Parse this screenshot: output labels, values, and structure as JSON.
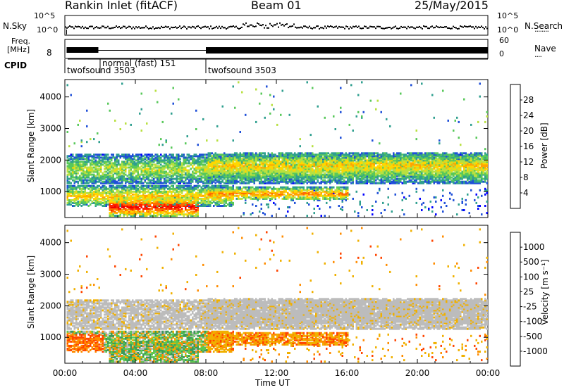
{
  "header": {
    "station": "Rankin Inlet (fitACF)",
    "beam": "Beam 01",
    "date": "25/May/2015"
  },
  "strip_labels": {
    "nsky": "N.Sky",
    "nsky_ticks": [
      "10^5",
      "10^0"
    ],
    "nsearch": "N.Search",
    "nsearch_ticks": [
      "10^5",
      "10^0"
    ],
    "freq_line1": "Freq.",
    "freq_line2": "[MHz]",
    "freq_ticks": [
      "8"
    ],
    "nave": "Nave",
    "nave_ticks": [
      "60",
      "0"
    ],
    "cpid": "CPID",
    "cpid_segments": [
      {
        "start_hour": 0.0,
        "label": "twofsound 3503"
      },
      {
        "start_hour": 2.0,
        "label": "normal (fast)  151"
      },
      {
        "start_hour": 8.0,
        "label": "twofsound 3503"
      }
    ]
  },
  "x_axis": {
    "label": "Time UT",
    "ticks": [
      "00:00",
      "04:00",
      "08:00",
      "12:00",
      "16:00",
      "20:00",
      "00:00"
    ],
    "range_hours": [
      0,
      24
    ]
  },
  "chart_data": [
    {
      "type": "heatmap",
      "panel": "power",
      "xlabel": "Time UT",
      "ylabel": "Slant Range [km]",
      "xlim_hours": [
        0,
        24
      ],
      "ylim_km": [
        180,
        4550
      ],
      "y_ticks": [
        "1000",
        "2000",
        "3000",
        "4000"
      ],
      "colorbar": {
        "label": "Power [dB]",
        "ticks": [
          "28",
          "24",
          "20",
          "16",
          "12",
          "8",
          "4"
        ],
        "colors": [
          "#0000ff",
          "#1f4fd8",
          "#2f9f8f",
          "#58c85a",
          "#b8e040",
          "#ffd700",
          "#ffa500",
          "#ff6a00",
          "#ff2000",
          "#ee0000"
        ]
      },
      "bands": [
        {
          "start_hour": 0.0,
          "end_hour": 24.0,
          "range_km": [
            1200,
            2150
          ],
          "peak_db": 14
        },
        {
          "start_hour": 0.0,
          "end_hour": 9.5,
          "range_km": [
            500,
            1150
          ],
          "peak_db": 18
        },
        {
          "start_hour": 2.5,
          "end_hour": 7.5,
          "range_km": [
            180,
            800
          ],
          "peak_db": 28
        },
        {
          "start_hour": 8.0,
          "end_hour": 16.0,
          "range_km": [
            700,
            1100
          ],
          "peak_db": 22
        },
        {
          "start_hour": 8.0,
          "end_hour": 24.0,
          "range_km": [
            1400,
            2200
          ],
          "peak_db": 18
        }
      ]
    },
    {
      "type": "heatmap",
      "panel": "velocity",
      "xlabel": "Time UT",
      "ylabel": "Slant Range [km]",
      "xlim_hours": [
        0,
        24
      ],
      "ylim_km": [
        180,
        4550
      ],
      "y_ticks": [
        "1000",
        "2000",
        "3000",
        "4000"
      ],
      "colorbar": {
        "label": "Velocity [m s⁻¹]",
        "ticks": [
          "1000",
          "500",
          "100",
          "25",
          "-25",
          "-100",
          "-500",
          "-1000"
        ],
        "colors": [
          "#1a1aff",
          "#3a6ad0",
          "#3c9a5a",
          "#5ec84e",
          "#bcbcbc",
          "#f0b000",
          "#ff8c00",
          "#ff4500",
          "#ff0000"
        ]
      }
    }
  ],
  "colors": {
    "ground_scatter": "#bcbcbc",
    "axis": "#000000"
  }
}
